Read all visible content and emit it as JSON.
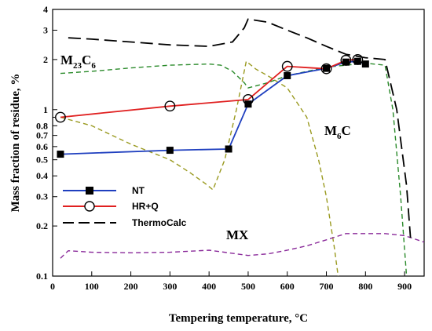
{
  "chart_data": {
    "type": "line",
    "xlabel": "Tempering temperature, °C",
    "ylabel": "Mass fraction of residue, %",
    "xlim": [
      0,
      950
    ],
    "ylim": [
      0.1,
      4
    ],
    "yscale": "log",
    "x_ticks": [
      "0",
      "100",
      "200",
      "300",
      "400",
      "500",
      "600",
      "700",
      "800",
      "900"
    ],
    "y_ticks": [
      {
        "v": 0.1,
        "label": "0.1"
      },
      {
        "v": 0.2,
        "label": "0.2"
      },
      {
        "v": 0.3,
        "label": "0.3"
      },
      {
        "v": 0.4,
        "label": "0.4"
      },
      {
        "v": 0.5,
        "label": "0.5"
      },
      {
        "v": 0.6,
        "label": "0.6"
      },
      {
        "v": 0.7,
        "label": "0.7"
      },
      {
        "v": 0.8,
        "label": "0.8"
      },
      {
        "v": 1,
        "label": "1"
      },
      {
        "v": 2,
        "label": "2"
      },
      {
        "v": 3,
        "label": "3"
      },
      {
        "v": 4,
        "label": "4"
      }
    ],
    "grid": false,
    "legend_position": "lower-left",
    "series": [
      {
        "name": "NT",
        "color": "#1f3fbf",
        "marker": "filled-square",
        "dash": "solid",
        "x": [
          20,
          300,
          450,
          500,
          600,
          700,
          750,
          780,
          800
        ],
        "y": [
          0.54,
          0.57,
          0.58,
          1.08,
          1.6,
          1.77,
          1.93,
          1.95,
          1.88
        ]
      },
      {
        "name": "HR+Q",
        "color": "#e02020",
        "marker": "open-circle",
        "dash": "solid",
        "x": [
          20,
          300,
          500,
          600,
          700,
          750,
          780
        ],
        "y": [
          0.9,
          1.05,
          1.15,
          1.82,
          1.76,
          1.98,
          2.0
        ]
      },
      {
        "name": "ThermoCalc",
        "color": "#000000",
        "marker": "none",
        "dash": "long-dash",
        "in_legend": true,
        "x": [
          40,
          100,
          200,
          300,
          400,
          460,
          490,
          500,
          550,
          600,
          650,
          700,
          750,
          800,
          850,
          880,
          905,
          915
        ],
        "y": [
          2.7,
          2.65,
          2.55,
          2.45,
          2.4,
          2.55,
          3.1,
          3.5,
          3.35,
          3.0,
          2.7,
          2.4,
          2.15,
          2.05,
          2.0,
          1.0,
          0.35,
          0.17
        ]
      },
      {
        "name": "M23C6",
        "color": "#2a8a2a",
        "marker": "none",
        "dash": "dash",
        "in_legend": false,
        "x": [
          20,
          100,
          200,
          300,
          400,
          430,
          460,
          490,
          500,
          550,
          600,
          700,
          800,
          850,
          870,
          890,
          905
        ],
        "y": [
          1.65,
          1.7,
          1.78,
          1.85,
          1.88,
          1.85,
          1.7,
          1.45,
          1.35,
          1.45,
          1.6,
          1.8,
          1.9,
          1.85,
          1.0,
          0.3,
          0.1
        ]
      },
      {
        "name": "M6C",
        "color": "#9a9a20",
        "marker": "none",
        "dash": "dash",
        "in_legend": false,
        "x": [
          20,
          100,
          200,
          300,
          350,
          390,
          410,
          440,
          470,
          495,
          520,
          550,
          600,
          650,
          680,
          700,
          720,
          730
        ],
        "y": [
          0.9,
          0.8,
          0.62,
          0.5,
          0.42,
          0.36,
          0.33,
          0.5,
          1.0,
          1.95,
          1.75,
          1.6,
          1.35,
          0.9,
          0.5,
          0.3,
          0.15,
          0.1
        ]
      },
      {
        "name": "MX",
        "color": "#8a2a9a",
        "marker": "none",
        "dash": "dash",
        "in_legend": false,
        "x": [
          20,
          40,
          100,
          200,
          300,
          400,
          450,
          500,
          550,
          600,
          650,
          700,
          750,
          800,
          850,
          900,
          950
        ],
        "y": [
          0.128,
          0.142,
          0.139,
          0.138,
          0.139,
          0.143,
          0.138,
          0.133,
          0.136,
          0.143,
          0.152,
          0.165,
          0.18,
          0.18,
          0.18,
          0.175,
          0.16
        ]
      }
    ],
    "annotations": [
      {
        "text": "M23C6",
        "base": "M",
        "sub": "23",
        "mid": "C",
        "sub2": "6"
      },
      {
        "text": "M6C",
        "base": "M",
        "sub": "6",
        "mid": "C",
        "sub2": ""
      },
      {
        "text": "MX",
        "base": "MX",
        "sub": "",
        "mid": "",
        "sub2": ""
      }
    ]
  }
}
